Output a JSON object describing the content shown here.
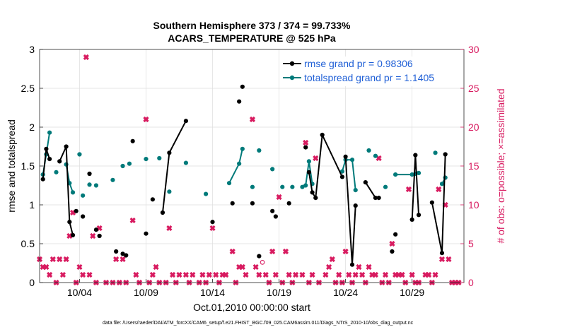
{
  "chart_data": {
    "type": "scatter",
    "title": "Southern Hemisphere 373 / 374 = 99.733%",
    "subtitle": "ACARS_TEMPERATURE @ 525 hPa",
    "xlabel": "Oct.01,2010 00:00:00 start",
    "ylabel_left": "rmse and totalspread",
    "ylabel_right": "# of obs: o=possible; ×=assimilated",
    "footnote": "data file: /Users/raeder/DAI/ATM_forcXX/CAM6_setup/f.e21.FHIST_BGC.f09_025.CAM6assim.011/Diags_NTrS_2010-10/obs_diag_output.nc",
    "xlim": [
      1.0,
      32.9
    ],
    "ylim_left": [
      0,
      3
    ],
    "ylim_right": [
      0,
      30
    ],
    "left_ticks": [
      "0",
      "0.5",
      "1",
      "1.5",
      "2",
      "2.5",
      "3"
    ],
    "right_ticks": [
      "0",
      "5",
      "10",
      "15",
      "20",
      "25",
      "30"
    ],
    "x_ticks": [
      {
        "x": 4,
        "label": "10/04"
      },
      {
        "x": 9,
        "label": "10/09"
      },
      {
        "x": 14,
        "label": "10/14"
      },
      {
        "x": 19,
        "label": "10/19"
      },
      {
        "x": 24,
        "label": "10/24"
      },
      {
        "x": 29,
        "label": "10/29"
      }
    ],
    "grid": true,
    "legend_position": "top-right",
    "colors": {
      "rmse": "#000000",
      "spread": "#007a7a",
      "obs": "#d81b60",
      "legend_text": "#1f5fd6"
    },
    "series": [
      {
        "name": "rmse grand pr = 0.98306",
        "points": [
          [
            1.25,
            1.33
          ],
          [
            1.5,
            1.72
          ],
          [
            1.75,
            1.59
          ],
          [
            2.5,
            1.56
          ],
          [
            3.0,
            1.75
          ],
          [
            3.25,
            0.78
          ],
          [
            3.5,
            0.61
          ],
          [
            3.75,
            0.92
          ],
          [
            4.25,
            0.85
          ],
          [
            4.75,
            1.4
          ],
          [
            5.25,
            0.68
          ],
          [
            5.5,
            0.6
          ],
          [
            6.75,
            0.4
          ],
          [
            7.25,
            0.37
          ],
          [
            7.5,
            0.35
          ],
          [
            8.0,
            1.82
          ],
          [
            9.0,
            0.63
          ],
          [
            9.5,
            1.07
          ],
          [
            10.25,
            0.9
          ],
          [
            10.75,
            1.67
          ],
          [
            12.0,
            2.08
          ],
          [
            14.0,
            0.78
          ],
          [
            15.5,
            1.02
          ],
          [
            16.0,
            2.33
          ],
          [
            16.25,
            2.52
          ],
          [
            17.0,
            1.02
          ],
          [
            17.5,
            0.34
          ],
          [
            18.5,
            0.92
          ],
          [
            18.75,
            0.85
          ],
          [
            19.75,
            1.02
          ],
          [
            21.0,
            1.74
          ],
          [
            21.25,
            1.42
          ],
          [
            21.5,
            1.16
          ],
          [
            21.75,
            1.09
          ],
          [
            22.25,
            1.9
          ],
          [
            23.75,
            1.36
          ],
          [
            24.0,
            1.62
          ],
          [
            24.5,
            0.23
          ],
          [
            24.75,
            0.99
          ],
          [
            25.5,
            1.29
          ],
          [
            26.25,
            1.09
          ],
          [
            26.5,
            1.09
          ],
          [
            27.5,
            0.4
          ],
          [
            27.75,
            0.62
          ],
          [
            29.0,
            0.81
          ],
          [
            29.25,
            1.64
          ],
          [
            29.5,
            0.87
          ],
          [
            30.5,
            1.03
          ],
          [
            31.25,
            0.38
          ],
          [
            31.5,
            1.65
          ]
        ],
        "segments": [
          [
            1,
            3
          ],
          [
            4,
            7
          ],
          [
            19,
            21
          ],
          [
            32,
            36
          ],
          [
            37,
            39
          ],
          [
            40,
            42
          ],
          [
            45,
            47
          ],
          [
            48,
            50
          ]
        ]
      },
      {
        "name": "totalspread grand pr = 1.1405",
        "points": [
          [
            1.25,
            1.39
          ],
          [
            1.5,
            1.65
          ],
          [
            1.75,
            1.93
          ],
          [
            2.25,
            1.42
          ],
          [
            3.0,
            1.52
          ],
          [
            3.25,
            1.28
          ],
          [
            3.5,
            1.16
          ],
          [
            4.0,
            1.65
          ],
          [
            4.25,
            1.12
          ],
          [
            4.75,
            1.26
          ],
          [
            5.25,
            1.25
          ],
          [
            6.5,
            1.32
          ],
          [
            7.25,
            1.5
          ],
          [
            7.75,
            1.53
          ],
          [
            9.0,
            1.59
          ],
          [
            10.0,
            1.6
          ],
          [
            10.75,
            1.17
          ],
          [
            12.0,
            1.54
          ],
          [
            13.5,
            1.14
          ],
          [
            15.25,
            1.28
          ],
          [
            16.0,
            1.53
          ],
          [
            16.25,
            1.72
          ],
          [
            17.0,
            1.23
          ],
          [
            17.5,
            1.7
          ],
          [
            18.5,
            1.46
          ],
          [
            19.25,
            1.23
          ],
          [
            20.0,
            1.23
          ],
          [
            20.75,
            1.23
          ],
          [
            21.0,
            1.25
          ],
          [
            21.25,
            1.56
          ],
          [
            21.5,
            1.27
          ],
          [
            23.75,
            1.43
          ],
          [
            24.0,
            1.58
          ],
          [
            24.5,
            1.58
          ],
          [
            24.75,
            1.19
          ],
          [
            25.75,
            1.7
          ],
          [
            26.25,
            1.63
          ],
          [
            27.0,
            1.23
          ],
          [
            27.75,
            1.39
          ],
          [
            29.0,
            1.39
          ],
          [
            29.25,
            1.4
          ],
          [
            29.5,
            1.41
          ],
          [
            30.75,
            1.67
          ],
          [
            31.25,
            1.27
          ],
          [
            31.5,
            1.35
          ]
        ],
        "segments": [
          [
            1,
            3
          ],
          [
            5,
            7
          ],
          [
            20,
            22
          ],
          [
            29,
            31
          ],
          [
            32,
            35
          ],
          [
            39,
            42
          ],
          [
            44,
            45
          ]
        ]
      },
      {
        "name": "assimilated (×)",
        "points": [
          [
            1.0,
            3
          ],
          [
            1.25,
            2
          ],
          [
            1.5,
            2
          ],
          [
            1.75,
            1
          ],
          [
            2.0,
            3
          ],
          [
            2.25,
            0
          ],
          [
            2.5,
            3
          ],
          [
            2.75,
            1
          ],
          [
            3.0,
            3
          ],
          [
            3.25,
            6
          ],
          [
            3.5,
            9
          ],
          [
            3.75,
            0
          ],
          [
            4.0,
            2
          ],
          [
            4.25,
            1
          ],
          [
            4.5,
            29
          ],
          [
            4.75,
            1
          ],
          [
            5.0,
            6
          ],
          [
            5.25,
            0
          ],
          [
            5.5,
            7
          ],
          [
            6.0,
            0
          ],
          [
            6.5,
            0
          ],
          [
            6.75,
            3
          ],
          [
            7.0,
            0
          ],
          [
            7.25,
            3
          ],
          [
            7.5,
            0
          ],
          [
            8.0,
            8
          ],
          [
            8.25,
            1
          ],
          [
            8.5,
            0
          ],
          [
            9.0,
            21
          ],
          [
            9.25,
            0
          ],
          [
            9.5,
            1
          ],
          [
            9.75,
            2
          ],
          [
            10.0,
            0
          ],
          [
            10.5,
            0
          ],
          [
            10.75,
            7
          ],
          [
            11.0,
            1
          ],
          [
            11.25,
            0
          ],
          [
            11.5,
            1
          ],
          [
            12.0,
            1
          ],
          [
            12.25,
            0
          ],
          [
            12.5,
            1
          ],
          [
            13.0,
            0
          ],
          [
            13.25,
            1
          ],
          [
            13.5,
            0
          ],
          [
            13.75,
            1
          ],
          [
            14.0,
            7
          ],
          [
            14.25,
            1
          ],
          [
            14.5,
            0
          ],
          [
            14.75,
            1
          ],
          [
            15.0,
            1
          ],
          [
            15.5,
            4
          ],
          [
            15.75,
            0
          ],
          [
            16.0,
            2
          ],
          [
            16.25,
            2
          ],
          [
            16.5,
            1
          ],
          [
            17.0,
            21
          ],
          [
            17.25,
            2
          ],
          [
            17.5,
            1
          ],
          [
            18.0,
            1
          ],
          [
            18.25,
            0
          ],
          [
            18.5,
            4
          ],
          [
            18.75,
            1
          ],
          [
            19.0,
            11
          ],
          [
            19.25,
            0
          ],
          [
            19.5,
            4
          ],
          [
            19.75,
            1
          ],
          [
            20.0,
            0
          ],
          [
            20.25,
            1
          ],
          [
            20.75,
            1
          ],
          [
            21.0,
            18
          ],
          [
            21.25,
            0
          ],
          [
            21.5,
            1
          ],
          [
            21.75,
            16
          ],
          [
            22.0,
            0
          ],
          [
            22.5,
            1
          ],
          [
            22.75,
            2
          ],
          [
            23.0,
            3
          ],
          [
            23.25,
            0
          ],
          [
            23.5,
            1
          ],
          [
            23.75,
            0
          ],
          [
            24.0,
            4
          ],
          [
            24.25,
            1
          ],
          [
            24.5,
            0
          ],
          [
            24.75,
            1
          ],
          [
            25.0,
            2
          ],
          [
            25.25,
            1
          ],
          [
            25.5,
            0
          ],
          [
            25.75,
            2
          ],
          [
            26.0,
            1
          ],
          [
            26.25,
            1
          ],
          [
            26.5,
            16
          ],
          [
            26.75,
            0
          ],
          [
            27.0,
            1
          ],
          [
            27.25,
            0
          ],
          [
            27.5,
            5
          ],
          [
            27.75,
            1
          ],
          [
            28.0,
            1
          ],
          [
            28.25,
            1
          ],
          [
            28.5,
            0
          ],
          [
            28.75,
            12
          ],
          [
            29.0,
            1
          ],
          [
            29.25,
            0
          ],
          [
            29.5,
            0
          ],
          [
            30.0,
            1
          ],
          [
            30.25,
            1
          ],
          [
            30.5,
            0
          ],
          [
            30.75,
            1
          ],
          [
            31.0,
            12
          ],
          [
            31.25,
            3
          ],
          [
            31.5,
            10
          ],
          [
            31.75,
            3
          ],
          [
            32.0,
            0
          ],
          [
            32.25,
            0
          ],
          [
            32.5,
            0
          ]
        ]
      },
      {
        "name": "possible (o)",
        "points": [
          [
            17.75,
            2.6
          ]
        ]
      }
    ]
  }
}
